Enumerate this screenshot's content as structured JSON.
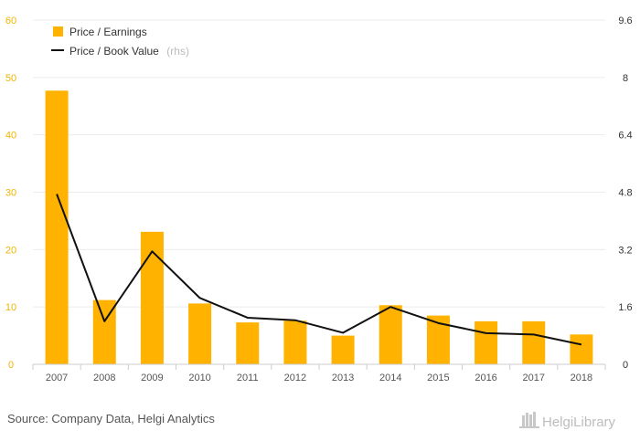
{
  "chart_data": {
    "type": "bar",
    "categories": [
      "2007",
      "2008",
      "2009",
      "2010",
      "2011",
      "2012",
      "2013",
      "2014",
      "2015",
      "2016",
      "2017",
      "2018"
    ],
    "series": [
      {
        "name": "Price / Earnings",
        "type": "bar",
        "axis": "left",
        "color": "#ffb300",
        "values": [
          47.7,
          11.2,
          23.1,
          10.6,
          7.3,
          7.6,
          5.0,
          10.3,
          8.5,
          7.5,
          7.5,
          5.2
        ]
      },
      {
        "name": "Price / Book Value",
        "suffix": "(rhs)",
        "type": "line",
        "axis": "right",
        "color": "#111111",
        "values": [
          4.75,
          1.2,
          3.15,
          1.85,
          1.3,
          1.23,
          0.88,
          1.6,
          1.15,
          0.87,
          0.83,
          0.55
        ]
      }
    ],
    "y_left": {
      "ylim": [
        0,
        60
      ],
      "ticks": [
        "0",
        "10",
        "20",
        "30",
        "40",
        "50",
        "60"
      ],
      "color": "#f0b400"
    },
    "y_right": {
      "ylim": [
        0,
        9.6
      ],
      "ticks": [
        "0",
        "1.6",
        "3.2",
        "4.8",
        "6.4",
        "8",
        "9.6"
      ],
      "color": "#333333"
    },
    "grid": true,
    "legend_position": "top-left"
  },
  "footer": {
    "source": "Source: Company Data, Helgi Analytics",
    "brand": "HelgiLibrary"
  }
}
